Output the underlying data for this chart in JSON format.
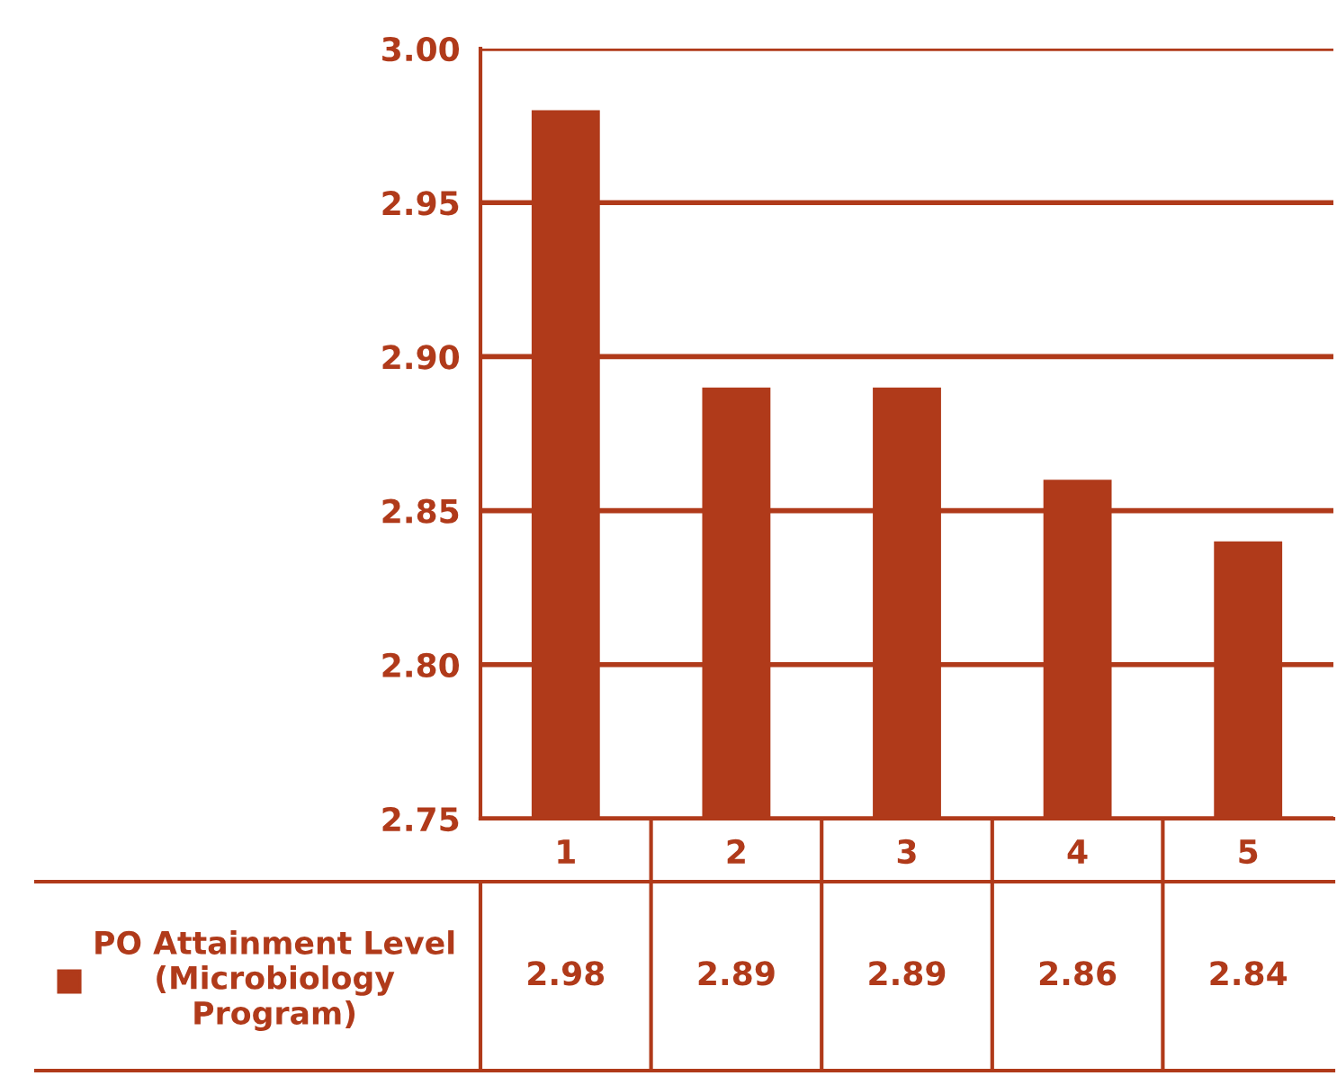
{
  "chart_data": {
    "type": "bar",
    "categories": [
      "1",
      "2",
      "3",
      "4",
      "5"
    ],
    "series": [
      {
        "name": "PO Attainment Level\n(Microbiology\nProgram)",
        "color": "#b03a1a",
        "values": [
          2.98,
          2.89,
          2.89,
          2.86,
          2.84
        ]
      }
    ],
    "ylim": [
      2.75,
      3.0
    ],
    "yticks": [
      {
        "value": 2.75,
        "label": "2.75"
      },
      {
        "value": 2.8,
        "label": "2.80"
      },
      {
        "value": 2.85,
        "label": "2.85"
      },
      {
        "value": 2.9,
        "label": "2.90"
      },
      {
        "value": 2.95,
        "label": "2.95"
      },
      {
        "value": 3.0,
        "label": "3.00"
      }
    ],
    "grid": "y",
    "data_labels": true,
    "legend": "bottom left"
  }
}
